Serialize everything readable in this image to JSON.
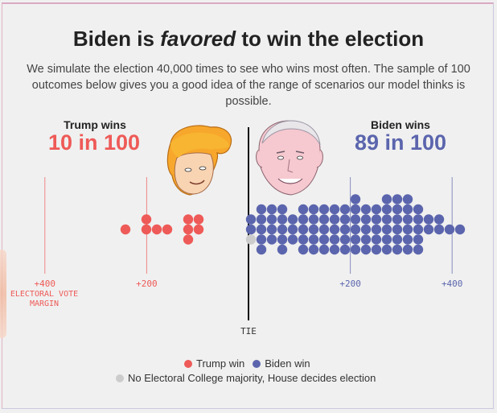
{
  "header": {
    "title_pre": "Biden is ",
    "title_em": "favored",
    "title_post": " to win the election",
    "subtitle": "We simulate the election 40,000 times to see who wins most often. The sample of 100 outcomes below gives you a good idea of the range of scenarios our model thinks is possible."
  },
  "trump": {
    "label": "Trump wins",
    "count": "10 in 100"
  },
  "biden": {
    "label": "Biden wins",
    "count": "89 in 100"
  },
  "colors": {
    "trump": "#ee5a57",
    "biden": "#5b65ad",
    "tie": "#cccccc"
  },
  "axis": {
    "tie_label": "TIE",
    "margin_label": "ELECTORAL VOTE MARGIN",
    "tick_labels": [
      "+400",
      "+200",
      "+200",
      "+400"
    ]
  },
  "legend": {
    "trump": "Trump win",
    "biden": "Biden win",
    "tie": "No Electoral College majority, House decides election"
  },
  "chart_data": {
    "type": "scatter",
    "title": "Biden is favored to win the election",
    "x_unit": "electoral vote margin (positive = Biden)",
    "xlim": [
      -480,
      440
    ],
    "ticks": [
      -400,
      -200,
      200,
      400
    ],
    "series": [
      {
        "name": "Trump win",
        "x": [
          -240,
          -201,
          -200,
          -180,
          -160,
          -120,
          -116,
          -115,
          -100,
          -97
        ],
        "count": 10
      },
      {
        "name": "Biden win",
        "count": 89,
        "x": [
          10,
          14,
          17,
          19,
          27,
          29,
          31,
          38,
          46,
          48,
          52,
          58,
          60,
          62,
          70,
          75,
          83,
          85,
          92,
          98,
          102,
          105,
          108,
          117,
          120,
          123,
          127,
          132,
          138,
          140,
          147,
          150,
          152,
          156,
          162,
          166,
          170,
          173,
          179,
          182,
          186,
          189,
          195,
          197,
          201,
          205,
          210,
          212,
          215,
          219,
          226,
          231,
          234,
          238,
          240,
          242,
          246,
          250,
          257,
          260,
          262,
          265,
          268,
          270,
          276,
          280,
          285,
          290,
          293,
          295,
          297,
          301,
          305,
          308,
          310,
          311,
          318,
          320,
          325,
          327,
          330,
          335,
          338,
          351,
          362,
          373,
          381,
          386,
          425
        ]
      },
      {
        "name": "No Electoral College majority, House decides election",
        "x": [
          0
        ],
        "count": 1
      }
    ]
  }
}
